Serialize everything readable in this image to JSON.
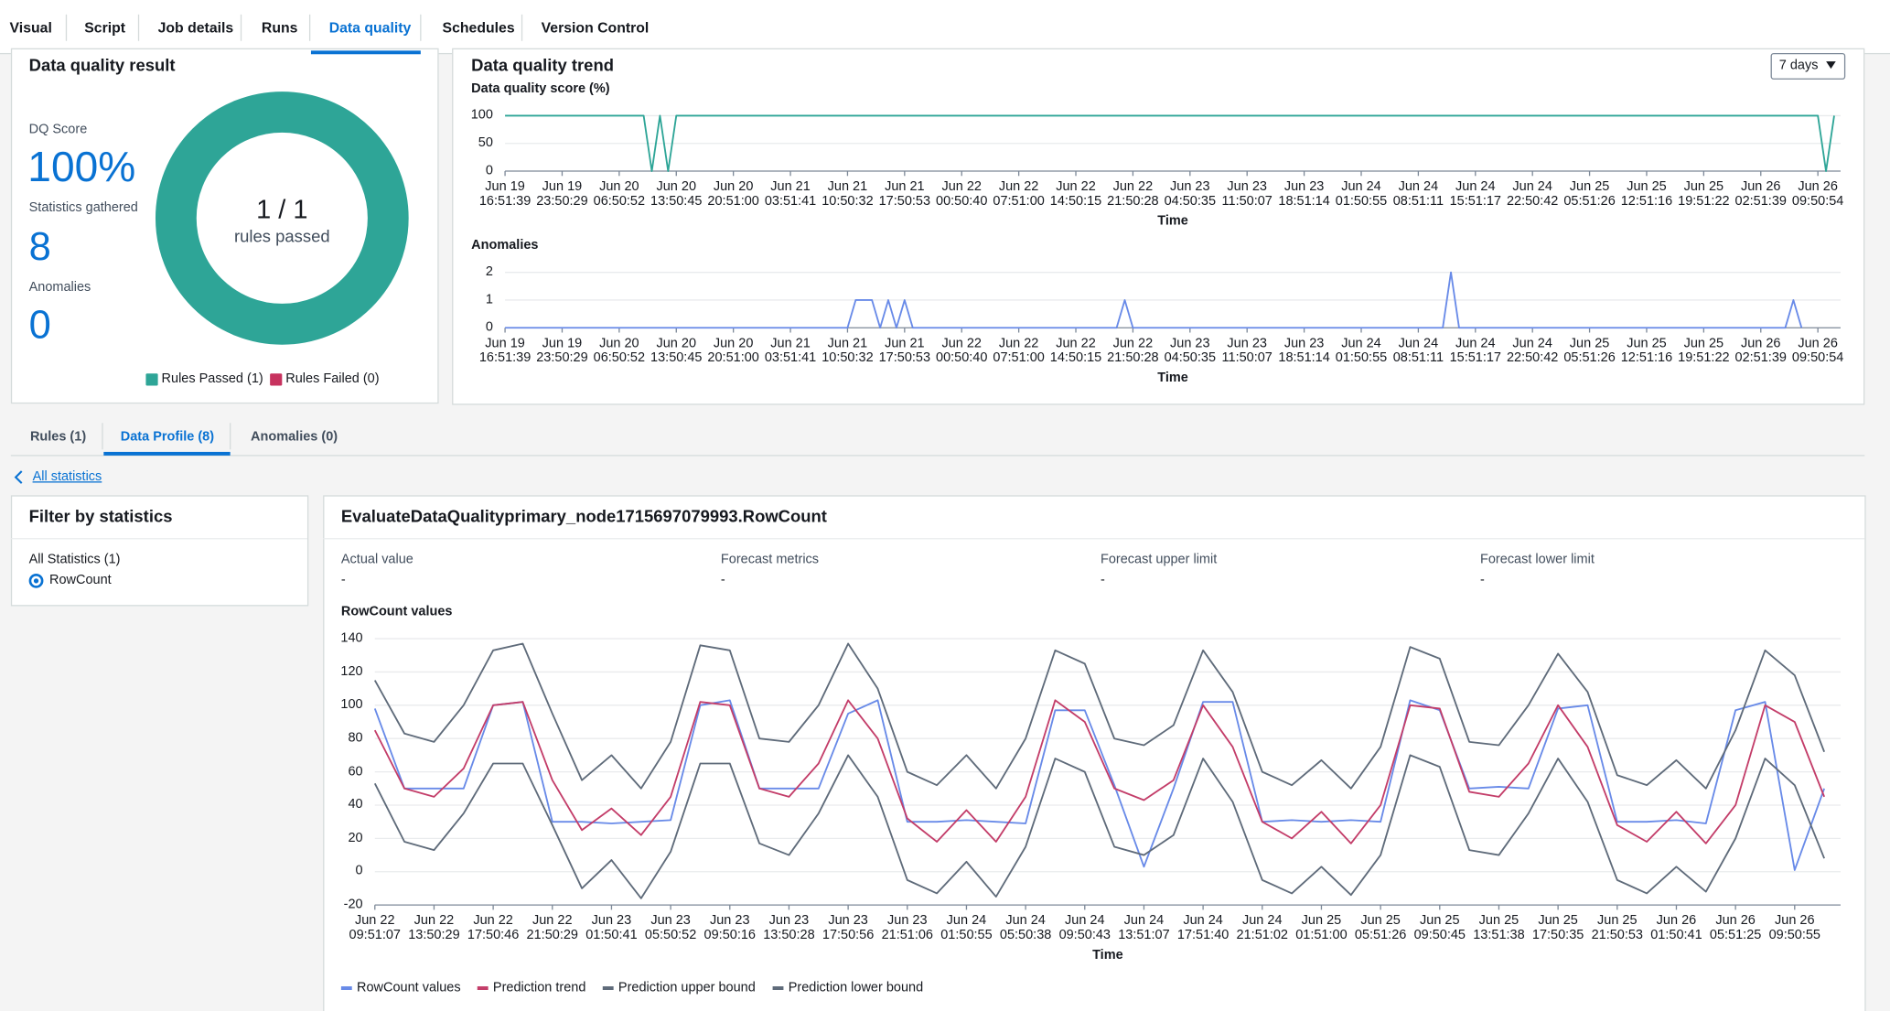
{
  "tabs": {
    "items": [
      "Visual",
      "Script",
      "Job details",
      "Runs",
      "Data quality",
      "Schedules",
      "Version Control"
    ],
    "active": 4
  },
  "result": {
    "title": "Data quality result",
    "dq_score_label": "DQ Score",
    "dq_score": "100%",
    "stats_label": "Statistics gathered",
    "stats": "8",
    "anomalies_label": "Anomalies",
    "anomalies": "0",
    "donut": {
      "type": "pie",
      "center_value": "1 / 1",
      "center_label": "rules passed",
      "series": [
        {
          "name": "Rules Passed (1)",
          "color": "#2ea597",
          "value": 1
        },
        {
          "name": "Rules Failed (0)",
          "color": "#c7325e",
          "value": 0
        }
      ]
    }
  },
  "trend": {
    "title": "Data quality trend",
    "range": "7 days",
    "score_chart": {
      "type": "line",
      "title": "Data quality score (%)",
      "x_label": "Time",
      "ylim": [
        0,
        100
      ],
      "yticks": [
        0,
        50,
        100
      ],
      "grid": true,
      "categories": [
        "Jun 19\n16:51:39",
        null,
        null,
        null,
        null,
        null,
        null,
        "Jun 19\n23:50:29",
        null,
        null,
        null,
        null,
        null,
        null,
        "Jun 20\n06:50:52",
        null,
        null,
        null,
        null,
        null,
        null,
        "Jun 20\n13:50:45",
        null,
        null,
        null,
        null,
        null,
        null,
        "Jun 20\n20:51:00",
        null,
        null,
        null,
        null,
        null,
        null,
        "Jun 21\n03:51:41",
        null,
        null,
        null,
        null,
        null,
        null,
        "Jun 21\n10:50:32",
        null,
        null,
        null,
        null,
        null,
        null,
        "Jun 21\n17:50:53",
        null,
        null,
        null,
        null,
        null,
        null,
        "Jun 22\n00:50:40",
        null,
        null,
        null,
        null,
        null,
        null,
        "Jun 22\n07:51:00",
        null,
        null,
        null,
        null,
        null,
        null,
        "Jun 22\n14:50:15",
        null,
        null,
        null,
        null,
        null,
        null,
        "Jun 22\n21:50:28",
        null,
        null,
        null,
        null,
        null,
        null,
        "Jun 23\n04:50:35",
        null,
        null,
        null,
        null,
        null,
        null,
        "Jun 23\n11:50:07",
        null,
        null,
        null,
        null,
        null,
        null,
        "Jun 23\n18:51:14",
        null,
        null,
        null,
        null,
        null,
        null,
        "Jun 24\n01:50:55",
        null,
        null,
        null,
        null,
        null,
        null,
        "Jun 24\n08:51:11",
        null,
        null,
        null,
        null,
        null,
        null,
        "Jun 24\n15:51:17",
        null,
        null,
        null,
        null,
        null,
        null,
        "Jun 24\n22:50:42",
        null,
        null,
        null,
        null,
        null,
        null,
        "Jun 25\n05:51:26",
        null,
        null,
        null,
        null,
        null,
        null,
        "Jun 25\n12:51:16",
        null,
        null,
        null,
        null,
        null,
        null,
        "Jun 25\n19:51:22",
        null,
        null,
        null,
        null,
        null,
        null,
        "Jun 26\n02:51:39",
        null,
        null,
        null,
        null,
        null,
        null,
        "Jun 26\n09:50:54",
        null,
        null
      ],
      "series": [
        {
          "color": "#2ea597",
          "values": [
            100,
            100,
            100,
            100,
            100,
            100,
            100,
            100,
            100,
            100,
            100,
            100,
            100,
            100,
            100,
            100,
            100,
            100,
            0,
            100,
            0,
            100,
            100,
            100,
            100,
            100,
            100,
            100,
            100,
            100,
            100,
            100,
            100,
            100,
            100,
            100,
            100,
            100,
            100,
            100,
            100,
            100,
            100,
            100,
            100,
            100,
            100,
            100,
            100,
            100,
            100,
            100,
            100,
            100,
            100,
            100,
            100,
            100,
            100,
            100,
            100,
            100,
            100,
            100,
            100,
            100,
            100,
            100,
            100,
            100,
            100,
            100,
            100,
            100,
            100,
            100,
            100,
            100,
            100,
            100,
            100,
            100,
            100,
            100,
            100,
            100,
            100,
            100,
            100,
            100,
            100,
            100,
            100,
            100,
            100,
            100,
            100,
            100,
            100,
            100,
            100,
            100,
            100,
            100,
            100,
            100,
            100,
            100,
            100,
            100,
            100,
            100,
            100,
            100,
            100,
            100,
            100,
            100,
            100,
            100,
            100,
            100,
            100,
            100,
            100,
            100,
            100,
            100,
            100,
            100,
            100,
            100,
            100,
            100,
            100,
            100,
            100,
            100,
            100,
            100,
            100,
            100,
            100,
            100,
            100,
            100,
            100,
            100,
            100,
            100,
            100,
            100,
            100,
            100,
            100,
            100,
            100,
            100,
            100,
            100,
            100,
            100,
            0,
            100
          ]
        }
      ]
    },
    "anomaly_chart": {
      "type": "line",
      "title": "Anomalies",
      "x_label": "Time",
      "ylim": [
        0,
        2
      ],
      "yticks": [
        0,
        1,
        2
      ],
      "grid": true,
      "categories": [
        "Jun 19\n16:51:39",
        null,
        null,
        null,
        null,
        null,
        null,
        "Jun 19\n23:50:29",
        null,
        null,
        null,
        null,
        null,
        null,
        "Jun 20\n06:50:52",
        null,
        null,
        null,
        null,
        null,
        null,
        "Jun 20\n13:50:45",
        null,
        null,
        null,
        null,
        null,
        null,
        "Jun 20\n20:51:00",
        null,
        null,
        null,
        null,
        null,
        null,
        "Jun 21\n03:51:41",
        null,
        null,
        null,
        null,
        null,
        null,
        "Jun 21\n10:50:32",
        null,
        null,
        null,
        null,
        null,
        null,
        "Jun 21\n17:50:53",
        null,
        null,
        null,
        null,
        null,
        null,
        "Jun 22\n00:50:40",
        null,
        null,
        null,
        null,
        null,
        null,
        "Jun 22\n07:51:00",
        null,
        null,
        null,
        null,
        null,
        null,
        "Jun 22\n14:50:15",
        null,
        null,
        null,
        null,
        null,
        null,
        "Jun 22\n21:50:28",
        null,
        null,
        null,
        null,
        null,
        null,
        "Jun 23\n04:50:35",
        null,
        null,
        null,
        null,
        null,
        null,
        "Jun 23\n11:50:07",
        null,
        null,
        null,
        null,
        null,
        null,
        "Jun 23\n18:51:14",
        null,
        null,
        null,
        null,
        null,
        null,
        "Jun 24\n01:50:55",
        null,
        null,
        null,
        null,
        null,
        null,
        "Jun 24\n08:51:11",
        null,
        null,
        null,
        null,
        null,
        null,
        "Jun 24\n15:51:17",
        null,
        null,
        null,
        null,
        null,
        null,
        "Jun 24\n22:50:42",
        null,
        null,
        null,
        null,
        null,
        null,
        "Jun 25\n05:51:26",
        null,
        null,
        null,
        null,
        null,
        null,
        "Jun 25\n12:51:16",
        null,
        null,
        null,
        null,
        null,
        null,
        "Jun 25\n19:51:22",
        null,
        null,
        null,
        null,
        null,
        null,
        "Jun 26\n02:51:39",
        null,
        null,
        null,
        null,
        null,
        null,
        "Jun 26\n09:50:54",
        null,
        null
      ],
      "series": [
        {
          "color": "#688ae8",
          "values": [
            0,
            0,
            0,
            0,
            0,
            0,
            0,
            0,
            0,
            0,
            0,
            0,
            0,
            0,
            0,
            0,
            0,
            0,
            0,
            0,
            0,
            0,
            0,
            0,
            0,
            0,
            0,
            0,
            0,
            0,
            0,
            0,
            0,
            0,
            0,
            0,
            0,
            0,
            0,
            0,
            0,
            0,
            0,
            1,
            1,
            1,
            0,
            1,
            0,
            1,
            0,
            0,
            0,
            0,
            0,
            0,
            0,
            0,
            0,
            0,
            0,
            0,
            0,
            0,
            0,
            0,
            0,
            0,
            0,
            0,
            0,
            0,
            0,
            0,
            0,
            0,
            1,
            0,
            0,
            0,
            0,
            0,
            0,
            0,
            0,
            0,
            0,
            0,
            0,
            0,
            0,
            0,
            0,
            0,
            0,
            0,
            0,
            0,
            0,
            0,
            0,
            0,
            0,
            0,
            0,
            0,
            0,
            0,
            0,
            0,
            0,
            0,
            0,
            0,
            0,
            0,
            2,
            0,
            0,
            0,
            0,
            0,
            0,
            0,
            0,
            0,
            0,
            0,
            0,
            0,
            0,
            0,
            0,
            0,
            0,
            0,
            0,
            0,
            0,
            0,
            0,
            0,
            0,
            0,
            0,
            0,
            0,
            0,
            0,
            0,
            0,
            0,
            0,
            0,
            0,
            0,
            0,
            0,
            1,
            0
          ]
        }
      ]
    }
  },
  "profile_tabs": {
    "items": [
      "Rules (1)",
      "Data Profile (8)",
      "Anomalies (0)"
    ],
    "active": 1
  },
  "back_link": "All statistics",
  "filter": {
    "title": "Filter by statistics",
    "group": "All Statistics (1)",
    "options": [
      "RowCount"
    ],
    "selected": 0
  },
  "detail": {
    "title": "EvaluateDataQualityprimary_node1715697079993.RowCount",
    "metrics": [
      {
        "label": "Actual value",
        "value": "-"
      },
      {
        "label": "Forecast metrics",
        "value": "-"
      },
      {
        "label": "Forecast upper limit",
        "value": "-"
      },
      {
        "label": "Forecast lower limit",
        "value": "-"
      }
    ],
    "chart": {
      "type": "line",
      "title": "RowCount values",
      "x_label": "Time",
      "ylim": [
        -20,
        140
      ],
      "yticks": [
        -20,
        0,
        20,
        40,
        60,
        80,
        100,
        120,
        140
      ],
      "grid": true,
      "legend": "bottom",
      "categories": [
        "Jun 22\n09:51:07",
        null,
        "Jun 22\n13:50:29",
        null,
        "Jun 22\n17:50:46",
        null,
        "Jun 22\n21:50:29",
        null,
        "Jun 23\n01:50:41",
        null,
        "Jun 23\n05:50:52",
        null,
        "Jun 23\n09:50:16",
        null,
        "Jun 23\n13:50:28",
        null,
        "Jun 23\n17:50:56",
        null,
        "Jun 23\n21:51:06",
        null,
        "Jun 24\n01:50:55",
        null,
        "Jun 24\n05:50:38",
        null,
        "Jun 24\n09:50:43",
        null,
        "Jun 24\n13:51:07",
        null,
        "Jun 24\n17:51:40",
        null,
        "Jun 24\n21:51:02",
        null,
        "Jun 25\n01:51:00",
        null,
        "Jun 25\n05:51:26",
        null,
        "Jun 25\n09:50:45",
        null,
        "Jun 25\n13:51:38",
        null,
        "Jun 25\n17:50:35",
        null,
        "Jun 25\n21:50:53",
        null,
        "Jun 26\n01:50:41",
        null,
        "Jun 26\n05:51:25",
        null,
        "Jun 26\n09:50:55",
        null
      ],
      "series": [
        {
          "name": "RowCount values",
          "color": "#688ae8",
          "values": [
            98,
            50,
            50,
            50,
            100,
            102,
            30,
            30,
            29,
            30,
            31,
            100,
            103,
            50,
            50,
            50,
            95,
            103,
            30,
            30,
            31,
            30,
            29,
            97,
            97,
            52,
            3,
            50,
            102,
            102,
            30,
            31,
            30,
            31,
            30,
            103,
            97,
            50,
            51,
            50,
            98,
            100,
            30,
            30,
            31,
            29,
            97,
            102,
            1,
            50
          ]
        },
        {
          "name": "Prediction trend",
          "color": "#c33d69",
          "values": [
            85,
            50,
            45,
            62,
            100,
            102,
            55,
            25,
            38,
            22,
            45,
            102,
            100,
            50,
            45,
            65,
            103,
            80,
            32,
            18,
            37,
            18,
            45,
            103,
            90,
            50,
            43,
            55,
            100,
            75,
            30,
            20,
            36,
            17,
            40,
            100,
            98,
            48,
            45,
            65,
            100,
            75,
            28,
            18,
            36,
            17,
            40,
            100,
            90,
            45
          ]
        },
        {
          "name": "Prediction upper bound",
          "color": "#5f6b7a",
          "values": [
            115,
            83,
            78,
            100,
            133,
            137,
            95,
            55,
            70,
            50,
            78,
            136,
            133,
            80,
            78,
            100,
            137,
            110,
            60,
            52,
            70,
            50,
            80,
            133,
            125,
            80,
            76,
            88,
            133,
            108,
            60,
            52,
            67,
            50,
            75,
            135,
            128,
            78,
            76,
            100,
            131,
            108,
            58,
            52,
            67,
            50,
            85,
            133,
            118,
            72
          ]
        },
        {
          "name": "Prediction lower bound",
          "color": "#5f6b7a",
          "values": [
            53,
            18,
            13,
            35,
            65,
            65,
            28,
            -10,
            7,
            -16,
            12,
            65,
            65,
            17,
            10,
            35,
            70,
            45,
            -5,
            -13,
            6,
            -15,
            15,
            68,
            60,
            15,
            10,
            22,
            68,
            42,
            -5,
            -13,
            3,
            -14,
            10,
            70,
            63,
            13,
            10,
            35,
            68,
            42,
            -5,
            -13,
            3,
            -12,
            20,
            68,
            52,
            8
          ]
        }
      ]
    }
  }
}
